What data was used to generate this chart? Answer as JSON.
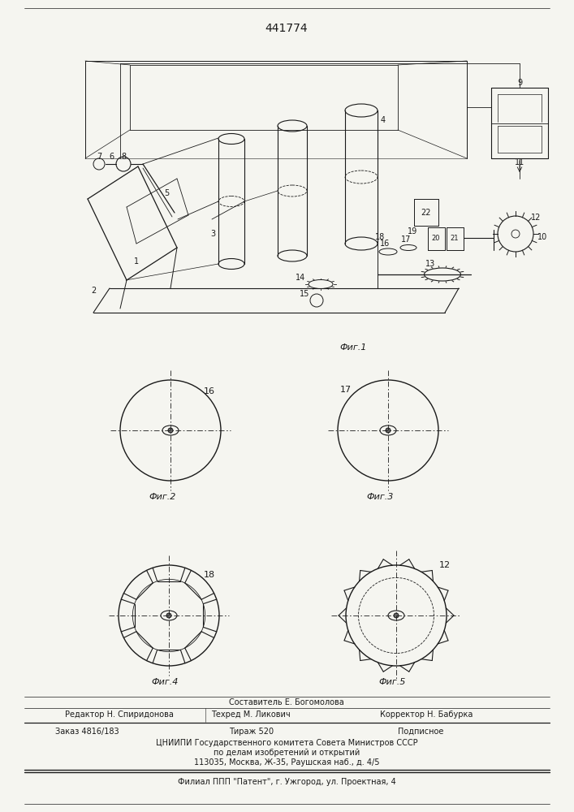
{
  "patent_number": "441774",
  "fig1_label": "Фиг.1",
  "fig2_label": "Фиг.2",
  "fig3_label": "Фиг.3",
  "fig4_label": "Фиг.4",
  "fig5_label": "Фиг.5",
  "footer_line1": "Составитель Е. Богомолова",
  "footer_line2_col1": "Редактор Н. Спиридонова",
  "footer_line2_col2": "Техред М. Ликович",
  "footer_line2_col3": "Корректор Н. Бабурка",
  "footer_line3_col1": "Заказ 4816/183",
  "footer_line3_col2": "Тираж 520",
  "footer_line3_col3": "Подписное",
  "footer_line4": "ЦНИИПИ Государственного комитета Совета Министров СССР",
  "footer_line5": "по делам изобретений и открытий",
  "footer_line6": "113035, Москва, Ж-35, Раушская наб., д. 4/5",
  "footer_line7": "Филиал ППП \"Патент\", г. Ужгород, ул. Проектная, 4",
  "bg_color": "#f5f5f0",
  "line_color": "#1a1a1a"
}
